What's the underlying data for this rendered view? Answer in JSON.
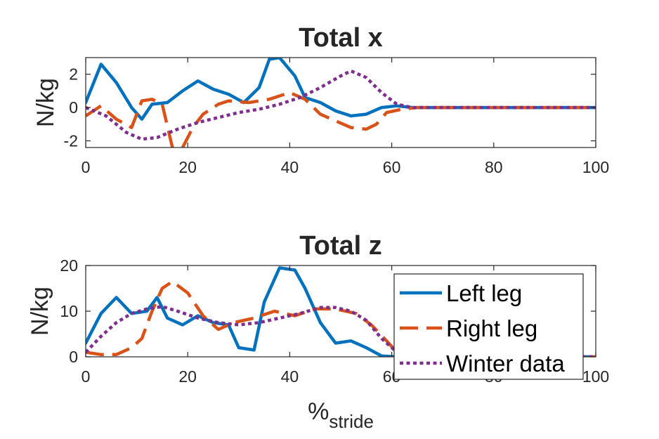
{
  "chart_data": [
    {
      "type": "line",
      "title": "Total x",
      "xlabel": "",
      "ylabel": "N/kg",
      "xlim": [
        0,
        100
      ],
      "ylim": [
        -2.4,
        3.0
      ],
      "xticks": [
        "0",
        "20",
        "40",
        "60",
        "80",
        "100"
      ],
      "yticks": [
        "2",
        "0",
        "-2"
      ],
      "grid": false,
      "series": [
        {
          "name": "Left leg",
          "color": "#0072BD",
          "style": "solid",
          "points": [
            [
              0,
              0.3
            ],
            [
              3,
              2.6
            ],
            [
              6,
              1.5
            ],
            [
              9,
              0.0
            ],
            [
              11,
              -0.7
            ],
            [
              13,
              0.2
            ],
            [
              16,
              0.3
            ],
            [
              19,
              1.0
            ],
            [
              22,
              1.6
            ],
            [
              25,
              1.1
            ],
            [
              28,
              0.8
            ],
            [
              31,
              0.3
            ],
            [
              34,
              1.2
            ],
            [
              36,
              2.9
            ],
            [
              38,
              3.0
            ],
            [
              41,
              1.9
            ],
            [
              43,
              0.6
            ],
            [
              46,
              0.3
            ],
            [
              49,
              -0.2
            ],
            [
              52,
              -0.5
            ],
            [
              55,
              -0.4
            ],
            [
              58,
              0.0
            ],
            [
              61,
              0.1
            ],
            [
              64,
              0.0
            ],
            [
              100,
              0.0
            ]
          ]
        },
        {
          "name": "Right leg",
          "color": "#D95319",
          "style": "dashed",
          "points": [
            [
              0,
              -0.5
            ],
            [
              3,
              0.1
            ],
            [
              6,
              -0.7
            ],
            [
              9,
              -1.2
            ],
            [
              11,
              0.4
            ],
            [
              13,
              0.5
            ],
            [
              15,
              0.2
            ],
            [
              17,
              -2.4
            ]
          ]
        },
        {
          "name": "Right leg",
          "color": "#D95319",
          "style": "dashed",
          "points": [
            [
              19,
              -2.4
            ],
            [
              21,
              -1.2
            ],
            [
              23,
              -0.4
            ],
            [
              26,
              0.2
            ],
            [
              28,
              0.4
            ],
            [
              32,
              0.3
            ],
            [
              36,
              0.5
            ],
            [
              40,
              0.9
            ],
            [
              43,
              0.5
            ],
            [
              46,
              -0.4
            ],
            [
              49,
              -0.8
            ],
            [
              52,
              -1.2
            ],
            [
              55,
              -1.3
            ],
            [
              57,
              -1.0
            ],
            [
              59,
              -0.3
            ],
            [
              62,
              -0.1
            ],
            [
              65,
              0.0
            ],
            [
              100,
              0.0
            ]
          ]
        },
        {
          "name": "Winter data",
          "color": "#7E2F8E",
          "style": "dotted",
          "points": [
            [
              0,
              0.0
            ],
            [
              4,
              -0.5
            ],
            [
              8,
              -1.5
            ],
            [
              11,
              -1.9
            ],
            [
              14,
              -1.8
            ],
            [
              18,
              -1.3
            ],
            [
              22,
              -0.9
            ],
            [
              26,
              -0.6
            ],
            [
              30,
              -0.3
            ],
            [
              34,
              -0.1
            ],
            [
              38,
              0.2
            ],
            [
              42,
              0.6
            ],
            [
              46,
              1.2
            ],
            [
              50,
              1.9
            ],
            [
              52,
              2.2
            ],
            [
              55,
              1.8
            ],
            [
              58,
              0.9
            ],
            [
              61,
              0.2
            ],
            [
              64,
              0.0
            ],
            [
              100,
              0.0
            ]
          ]
        }
      ]
    },
    {
      "type": "line",
      "title": "Total z",
      "xlabel": "%",
      "xlabel_subscript": "stride",
      "ylabel": "N/kg",
      "xlim": [
        0,
        100
      ],
      "ylim": [
        0,
        20
      ],
      "xticks": [
        "0",
        "20",
        "40",
        "60",
        "80",
        "100"
      ],
      "yticks": [
        "20",
        "10",
        "0"
      ],
      "grid": false,
      "legend": {
        "placement": "top-right",
        "entries": [
          {
            "label": "Left leg",
            "color": "#0072BD",
            "style": "solid"
          },
          {
            "label": "Right leg",
            "color": "#D95319",
            "style": "dashed"
          },
          {
            "label": "Winter data",
            "color": "#7E2F8E",
            "style": "dotted"
          }
        ]
      },
      "series": [
        {
          "name": "Left leg",
          "color": "#0072BD",
          "style": "solid",
          "points": [
            [
              0,
              3
            ],
            [
              3,
              9.5
            ],
            [
              6,
              13
            ],
            [
              9,
              9.5
            ],
            [
              12,
              10
            ],
            [
              14,
              13
            ],
            [
              16,
              8.5
            ],
            [
              19,
              7
            ],
            [
              22,
              9
            ],
            [
              25,
              7.5
            ],
            [
              28,
              7
            ],
            [
              30,
              2
            ],
            [
              33,
              1.5
            ],
            [
              35,
              12
            ],
            [
              38,
              19.5
            ],
            [
              41,
              19
            ],
            [
              43,
              15
            ],
            [
              46,
              7.5
            ],
            [
              49,
              3
            ],
            [
              52,
              3.5
            ],
            [
              55,
              2
            ],
            [
              58,
              0.2
            ],
            [
              61,
              0
            ],
            [
              100,
              0
            ]
          ]
        },
        {
          "name": "Right leg",
          "color": "#D95319",
          "style": "dashed",
          "points": [
            [
              0,
              1
            ],
            [
              3,
              0.5
            ],
            [
              6,
              0.5
            ],
            [
              9,
              2
            ],
            [
              11,
              4
            ],
            [
              13,
              10
            ],
            [
              15,
              15
            ],
            [
              17,
              16.5
            ],
            [
              20,
              14
            ],
            [
              23,
              9
            ],
            [
              26,
              6
            ],
            [
              29,
              7.5
            ],
            [
              33,
              8.5
            ],
            [
              37,
              10
            ],
            [
              41,
              9
            ],
            [
              45,
              10.5
            ],
            [
              49,
              10.5
            ],
            [
              53,
              9.5
            ],
            [
              56,
              7
            ],
            [
              59,
              3.5
            ],
            [
              61,
              1
            ],
            [
              63,
              0
            ],
            [
              100,
              0
            ]
          ]
        },
        {
          "name": "Winter data",
          "color": "#7E2F8E",
          "style": "dotted",
          "points": [
            [
              0,
              1
            ],
            [
              3,
              4.5
            ],
            [
              6,
              7.5
            ],
            [
              9,
              9.5
            ],
            [
              12,
              10.5
            ],
            [
              15,
              11
            ],
            [
              18,
              10
            ],
            [
              22,
              8.5
            ],
            [
              26,
              7.5
            ],
            [
              30,
              7
            ],
            [
              34,
              7.5
            ],
            [
              38,
              8.5
            ],
            [
              42,
              9.5
            ],
            [
              46,
              10.8
            ],
            [
              49,
              10.8
            ],
            [
              52,
              10
            ],
            [
              55,
              8
            ],
            [
              58,
              4
            ],
            [
              61,
              1
            ],
            [
              64,
              0
            ],
            [
              100,
              0
            ]
          ]
        }
      ]
    }
  ]
}
